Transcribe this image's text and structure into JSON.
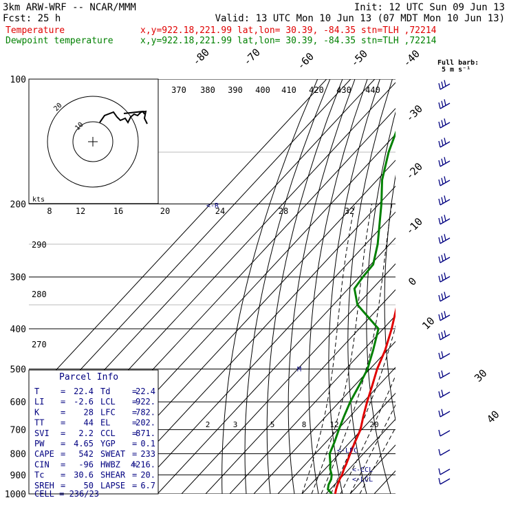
{
  "header": {
    "model": "3km ARW-WRF -- NCAR/MMM",
    "init": "Init: 12 UTC Sun 09 Jun 13",
    "fcst": "Fcst:   25 h",
    "valid": "Valid: 13 UTC Mon 10 Jun 13 (07 MDT Mon 10 Jun 13)"
  },
  "legend": [
    {
      "label": "Temperature",
      "info": "x,y=922.18,221.99   lat,lon= 30.39, -84.35   stn=TLH ,72214",
      "color": "#e00000"
    },
    {
      "label": "Dewpoint temperature",
      "info": "x,y=922.18,221.99   lat,lon= 30.39, -84.35   stn=TLH ,72214",
      "color": "#008000"
    }
  ],
  "barb_legend": {
    "title": "Full barb:",
    "value": "5 m s⁻¹"
  },
  "hodograph": {
    "units_label": "kts",
    "ring_labels": [
      "10",
      "20"
    ]
  },
  "cells": {
    "hodo_marker": "<-R",
    "barb_marker": "M"
  },
  "parcel_info": {
    "title": "Parcel Info",
    "rows": [
      {
        "l1": "T",
        "v1": "22.4",
        "l2": "Td",
        "v2": "22.4"
      },
      {
        "l1": "LI",
        "v1": "-2.6",
        "l2": "LCL",
        "v2": "922."
      },
      {
        "l1": "K",
        "v1": "28",
        "l2": "LFC",
        "v2": "782."
      },
      {
        "l1": "TT",
        "v1": "44",
        "l2": "EL",
        "v2": "202."
      },
      {
        "l1": "SVI",
        "v1": "2.2",
        "l2": "CCL",
        "v2": "871."
      },
      {
        "l1": "PW",
        "v1": "4.65",
        "l2": "YGP",
        "v2": "0.1"
      },
      {
        "l1": "CAPE",
        "v1": "542",
        "l2": "SWEAT",
        "v2": "233"
      },
      {
        "l1": "CIN",
        "v1": "-96",
        "l2": "HWBZ",
        "v2": "4216."
      },
      {
        "l1": "Tc",
        "v1": "30.6",
        "l2": "SHEAR",
        "v2": "20."
      },
      {
        "l1": "SREH",
        "v1": "50",
        "l2": "LAPSE",
        "v2": "6.7"
      }
    ],
    "cell": "CELL = 236/23"
  },
  "level_markers": [
    "<-LFC",
    "<-CCL",
    "<-LCL"
  ],
  "chart_data": {
    "type": "line",
    "title": "",
    "pressure_levels": [
      "100",
      "200",
      "300",
      "400",
      "500",
      "600",
      "700",
      "800",
      "900",
      "1000"
    ],
    "isotherm_labels": [
      "-80",
      "-70",
      "-60",
      "-50",
      "-40",
      "-30",
      "-20",
      "-10",
      "0",
      "10",
      "30",
      "40"
    ],
    "theta_labels_top": [
      "370",
      "380",
      "390",
      "400",
      "410",
      "420",
      "430",
      "440"
    ],
    "theta_labels_left": [
      "290",
      "280",
      "270"
    ],
    "wind_speed_labels": [
      "8",
      "12",
      "16",
      "20",
      "24",
      "28",
      "32"
    ],
    "mixing_ratio_labels": [
      "2",
      "3",
      "5",
      "8",
      "12",
      "20"
    ],
    "series": [
      {
        "name": "Temperature",
        "color": "#e00000",
        "values": [
          {
            "p": 1000,
            "t": 23.8
          },
          {
            "p": 975,
            "t": 22.4
          },
          {
            "p": 950,
            "t": 21.2
          },
          {
            "p": 922,
            "t": 20.0
          },
          {
            "p": 900,
            "t": 19.3
          },
          {
            "p": 870,
            "t": 17.8
          },
          {
            "p": 850,
            "t": 17.0
          },
          {
            "p": 800,
            "t": 14.5
          },
          {
            "p": 750,
            "t": 12.0
          },
          {
            "p": 700,
            "t": 9.5
          },
          {
            "p": 650,
            "t": 5.5
          },
          {
            "p": 600,
            "t": 1.5
          },
          {
            "p": 550,
            "t": -2.5
          },
          {
            "p": 500,
            "t": -7.0
          },
          {
            "p": 450,
            "t": -11.0
          },
          {
            "p": 400,
            "t": -16.5
          },
          {
            "p": 350,
            "t": -23.5
          },
          {
            "p": 300,
            "t": -31.5
          },
          {
            "p": 250,
            "t": -41.0
          },
          {
            "p": 200,
            "t": -52.5
          },
          {
            "p": 175,
            "t": -59.0
          },
          {
            "p": 150,
            "t": -63.0
          },
          {
            "p": 130,
            "t": -63.0
          },
          {
            "p": 115,
            "t": -62.0
          },
          {
            "p": 100,
            "t": -62.5
          }
        ]
      },
      {
        "name": "Dewpoint temperature",
        "color": "#008000",
        "values": [
          {
            "p": 1000,
            "t": 22.4
          },
          {
            "p": 975,
            "t": 19.0
          },
          {
            "p": 950,
            "t": 17.5
          },
          {
            "p": 922,
            "t": 16.5
          },
          {
            "p": 900,
            "t": 15.0
          },
          {
            "p": 870,
            "t": 12.0
          },
          {
            "p": 850,
            "t": 10.5
          },
          {
            "p": 800,
            "t": 6.0
          },
          {
            "p": 750,
            "t": 3.5
          },
          {
            "p": 700,
            "t": 0.5
          },
          {
            "p": 650,
            "t": -2.5
          },
          {
            "p": 600,
            "t": -5.5
          },
          {
            "p": 550,
            "t": -8.0
          },
          {
            "p": 500,
            "t": -11.0
          },
          {
            "p": 450,
            "t": -16.0
          },
          {
            "p": 400,
            "t": -22.0
          },
          {
            "p": 350,
            "t": -40.0
          },
          {
            "p": 320,
            "t": -47.5
          },
          {
            "p": 300,
            "t": -48.5
          },
          {
            "p": 280,
            "t": -49.0
          },
          {
            "p": 250,
            "t": -55.0
          },
          {
            "p": 200,
            "t": -69.0
          },
          {
            "p": 175,
            "t": -78.0
          },
          {
            "p": 150,
            "t": -86.0
          },
          {
            "p": 130,
            "t": -92.0
          },
          {
            "p": 115,
            "t": -97.0
          },
          {
            "p": 100,
            "t": -99.0
          }
        ]
      }
    ],
    "grid": true
  }
}
